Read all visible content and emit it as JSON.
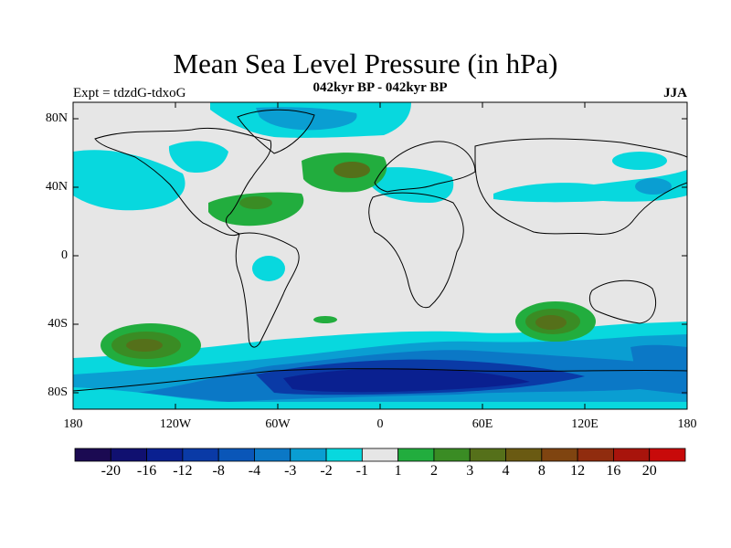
{
  "title": "Mean Sea Level Pressure (in hPa)",
  "subtitle": "042kyr BP - 042kyr BP",
  "left_label": "Expt = tdzdG-tdxoG",
  "right_label": "JJA",
  "lat_ticks": [
    "80N",
    "40N",
    "0",
    "40S",
    "80S"
  ],
  "lon_ticks": [
    "180",
    "120W",
    "60W",
    "0",
    "60E",
    "120E",
    "180"
  ],
  "colorbar": {
    "colors": [
      "#1b0a52",
      "#101070",
      "#0a2090",
      "#0a3aa6",
      "#0a56b8",
      "#0b78c6",
      "#0a9ed2",
      "#08d8de",
      "#e6e6e6",
      "#22ad3e",
      "#3a8c24",
      "#55701a",
      "#6a5a12",
      "#7f4410",
      "#902c0e",
      "#a8140c",
      "#c80a0a"
    ],
    "labels": [
      "-20",
      "-16",
      "-12",
      "-8",
      "-4",
      "-3",
      "-2",
      "-1",
      "1",
      "2",
      "3",
      "4",
      "8",
      "12",
      "16",
      "20"
    ]
  }
}
